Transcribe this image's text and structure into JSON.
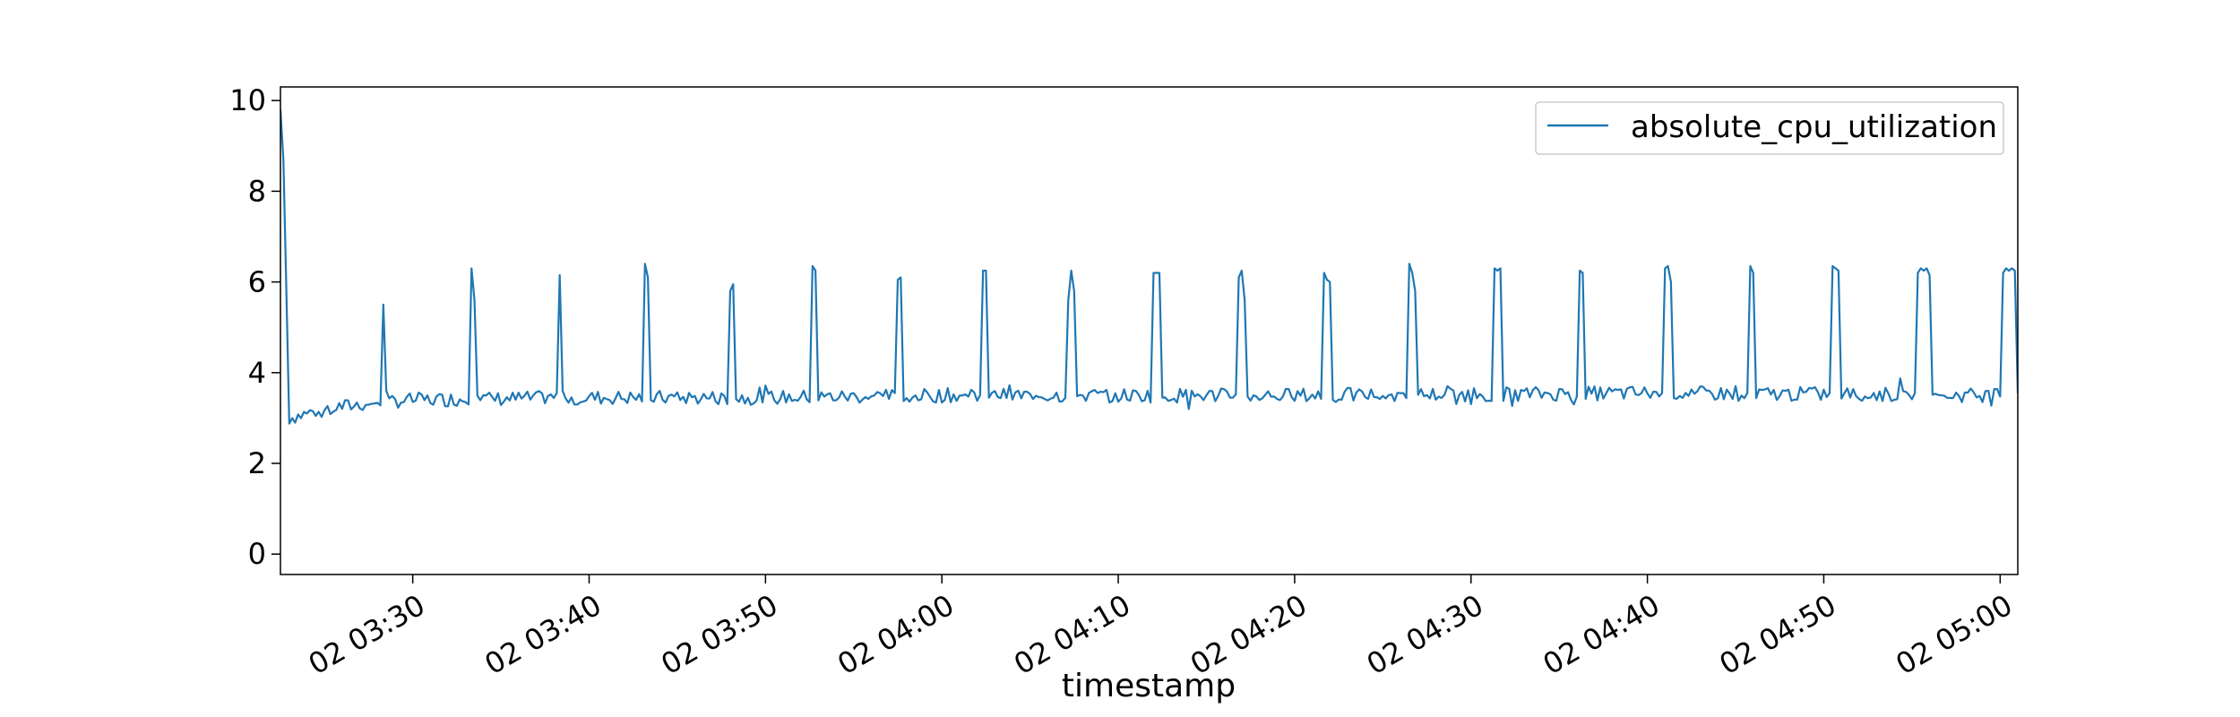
{
  "chart_data": {
    "type": "line",
    "title": "",
    "xlabel": "timestamp",
    "ylabel": "",
    "x_start": "02 03:22:30",
    "x_end": "02 05:01:00",
    "xlim": [
      "02 03:22:30",
      "02 05:01:00"
    ],
    "ylim": [
      -0.45,
      10.3
    ],
    "y_ticks": [
      0,
      2,
      4,
      6,
      8,
      10
    ],
    "y_tick_labels": [
      "0",
      "2",
      "4",
      "6",
      "8",
      "10"
    ],
    "x_ticks": [
      "02 03:30",
      "02 03:40",
      "02 03:50",
      "02 04:00",
      "02 04:10",
      "02 04:20",
      "02 04:30",
      "02 04:40",
      "02 04:50",
      "02 05:00"
    ],
    "x_tick_labels": [
      "02 03:30",
      "02 03:40",
      "02 03:50",
      "02 04:00",
      "02 04:10",
      "02 04:20",
      "02 04:30",
      "02 04:40",
      "02 04:50",
      "02 05:00"
    ],
    "grid": false,
    "legend": {
      "position": "top-right",
      "entries": [
        "absolute_cpu_utilization"
      ]
    },
    "series": [
      {
        "name": "absolute_cpu_utilization",
        "color": "#1f77b4",
        "x_start": "02 03:22:30",
        "interval": "10s",
        "baseline_x": [
          "02 03:22:30",
          "02 03:22:40",
          "02 03:23:00",
          "02 03:25:00",
          "02 03:28:00",
          "02 03:30:00",
          "02 03:40:00",
          "02 03:50:00",
          "02 04:00:00",
          "02 04:20:00",
          "02 04:40:00",
          "02 05:00:00",
          "02 05:01:00"
        ],
        "baseline_y": [
          9.8,
          8.7,
          3.0,
          3.2,
          3.35,
          3.4,
          3.45,
          3.45,
          3.5,
          3.5,
          3.55,
          3.5,
          3.5
        ],
        "spikes": [
          {
            "start": "02 03:28:20",
            "values": [
              5.5,
              3.6
            ]
          },
          {
            "start": "02 03:33:20",
            "values": [
              6.3,
              5.6
            ]
          },
          {
            "start": "02 03:38:20",
            "values": [
              6.15,
              3.6
            ]
          },
          {
            "start": "02 03:43:10",
            "values": [
              6.4,
              6.1
            ]
          },
          {
            "start": "02 03:48:00",
            "values": [
              5.8,
              5.95
            ]
          },
          {
            "start": "02 03:52:40",
            "values": [
              6.35,
              6.25
            ]
          },
          {
            "start": "02 03:57:30",
            "values": [
              6.05,
              6.1
            ]
          },
          {
            "start": "02 04:02:20",
            "values": [
              6.25,
              6.25
            ]
          },
          {
            "start": "02 04:07:10",
            "values": [
              5.6,
              6.25,
              5.8
            ]
          },
          {
            "start": "02 04:12:00",
            "values": [
              6.2,
              6.2,
              6.2
            ]
          },
          {
            "start": "02 04:16:50",
            "values": [
              6.1,
              6.25,
              5.6
            ]
          },
          {
            "start": "02 04:21:40",
            "values": [
              6.2,
              6.05,
              6.0
            ]
          },
          {
            "start": "02 04:26:30",
            "values": [
              6.4,
              6.2,
              5.8
            ]
          },
          {
            "start": "02 04:31:20",
            "values": [
              6.3,
              6.25,
              6.3
            ]
          },
          {
            "start": "02 04:36:10",
            "values": [
              6.25,
              6.2
            ]
          },
          {
            "start": "02 04:41:00",
            "values": [
              6.3,
              6.35,
              6.0
            ]
          },
          {
            "start": "02 04:45:50",
            "values": [
              6.35,
              6.2
            ]
          },
          {
            "start": "02 04:50:30",
            "values": [
              6.35,
              6.3,
              6.25
            ]
          },
          {
            "start": "02 04:55:20",
            "values": [
              6.2,
              6.3,
              6.25,
              6.3,
              6.15
            ]
          },
          {
            "start": "02 05:00:10",
            "values": [
              6.2,
              6.3,
              6.25,
              6.3,
              6.25
            ]
          }
        ]
      }
    ]
  }
}
